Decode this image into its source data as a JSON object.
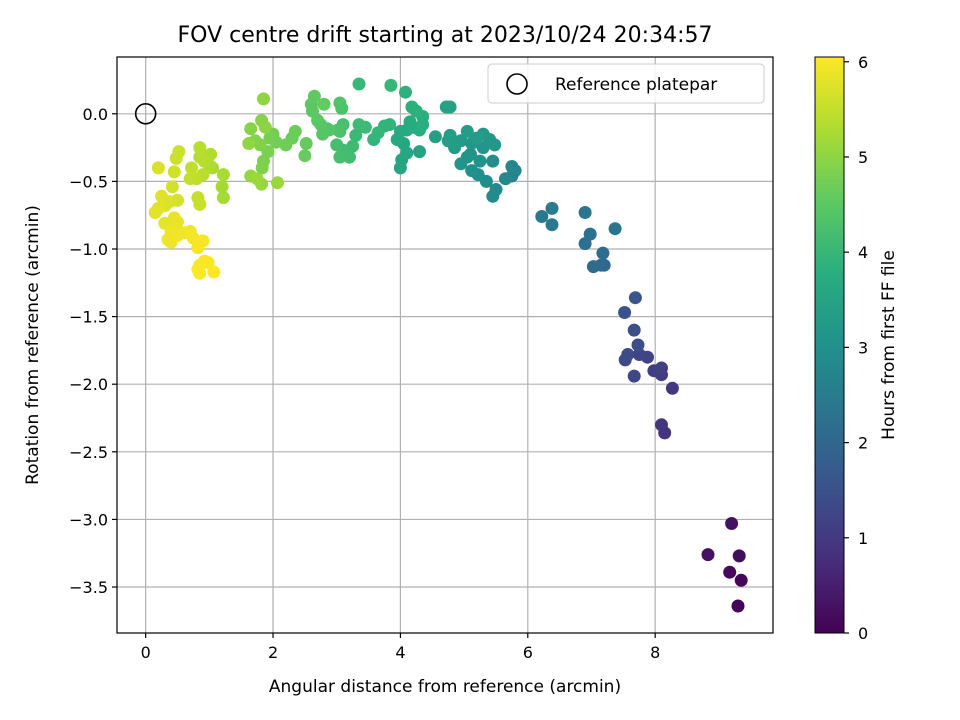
{
  "chart_data": {
    "type": "scatter",
    "title": "FOV centre drift starting at 2023/10/24 20:34:57",
    "xlabel": "Angular distance from reference (arcmin)",
    "ylabel": "Rotation from reference (arcmin)",
    "colorbar_label": "Hours from first FF file",
    "colormap": "viridis",
    "xlim": [
      -0.45,
      9.85
    ],
    "ylim": [
      -3.84,
      0.42
    ],
    "clim": [
      0,
      6.05
    ],
    "xticks": [
      0,
      2,
      4,
      6,
      8
    ],
    "yticks": [
      0.0,
      -0.5,
      -1.0,
      -1.5,
      -2.0,
      -2.5,
      -3.0,
      -3.5
    ],
    "xtick_labels": [
      "0",
      "2",
      "4",
      "6",
      "8"
    ],
    "ytick_labels": [
      "0.0",
      "−0.5",
      "−1.0",
      "−1.5",
      "−2.0",
      "−2.5",
      "−3.0",
      "−3.5"
    ],
    "cticks": [
      0,
      1,
      2,
      3,
      4,
      5,
      6
    ],
    "ctick_labels": [
      "0",
      "1",
      "2",
      "3",
      "4",
      "5",
      "6"
    ],
    "grid": true,
    "legend": {
      "placement": "upper right",
      "label": "Reference platepar"
    },
    "reference_point": {
      "x": 0,
      "y": 0
    },
    "points": [
      [
        9.3,
        -3.64,
        0.05
      ],
      [
        9.35,
        -3.45,
        0.1
      ],
      [
        9.17,
        -3.39,
        0.15
      ],
      [
        9.32,
        -3.27,
        0.2
      ],
      [
        8.83,
        -3.26,
        0.25
      ],
      [
        9.2,
        -3.03,
        0.3
      ],
      [
        8.15,
        -2.36,
        0.9
      ],
      [
        8.1,
        -2.3,
        0.95
      ],
      [
        8.27,
        -2.03,
        1.0
      ],
      [
        8.1,
        -1.93,
        1.05
      ],
      [
        7.98,
        -1.9,
        1.1
      ],
      [
        8.1,
        -1.88,
        1.15
      ],
      [
        7.88,
        -1.8,
        1.2
      ],
      [
        7.75,
        -1.78,
        1.25
      ],
      [
        7.67,
        -1.94,
        1.3
      ],
      [
        7.53,
        -1.82,
        1.35
      ],
      [
        7.57,
        -1.78,
        1.4
      ],
      [
        7.73,
        -1.71,
        1.45
      ],
      [
        7.67,
        -1.6,
        1.5
      ],
      [
        7.52,
        -1.47,
        1.55
      ],
      [
        7.69,
        -1.36,
        1.6
      ],
      [
        7.15,
        -1.12,
        2.0
      ],
      [
        7.2,
        -1.12,
        2.05
      ],
      [
        7.03,
        -1.13,
        2.1
      ],
      [
        7.18,
        -1.03,
        2.15
      ],
      [
        6.9,
        -0.96,
        2.2
      ],
      [
        6.98,
        -0.89,
        2.25
      ],
      [
        7.37,
        -0.85,
        2.3
      ],
      [
        6.9,
        -0.73,
        2.35
      ],
      [
        6.38,
        -0.82,
        2.4
      ],
      [
        6.22,
        -0.76,
        2.45
      ],
      [
        6.38,
        -0.7,
        2.5
      ],
      [
        5.75,
        -0.46,
        2.7
      ],
      [
        5.8,
        -0.42,
        2.72
      ],
      [
        5.75,
        -0.39,
        2.75
      ],
      [
        5.65,
        -0.48,
        2.8
      ],
      [
        5.45,
        -0.61,
        2.85
      ],
      [
        5.5,
        -0.56,
        2.87
      ],
      [
        5.35,
        -0.5,
        2.9
      ],
      [
        5.45,
        -0.35,
        2.95
      ],
      [
        5.22,
        -0.45,
        3.0
      ],
      [
        5.12,
        -0.42,
        3.02
      ],
      [
        5.25,
        -0.35,
        3.05
      ],
      [
        5.1,
        -0.3,
        3.07
      ],
      [
        4.95,
        -0.37,
        3.1
      ],
      [
        5.05,
        -0.32,
        3.12
      ],
      [
        5.3,
        -0.25,
        3.15
      ],
      [
        5.12,
        -0.22,
        3.17
      ],
      [
        5.48,
        -0.23,
        3.2
      ],
      [
        5.4,
        -0.19,
        3.22
      ],
      [
        5.3,
        -0.15,
        3.25
      ],
      [
        4.95,
        -0.2,
        3.27
      ],
      [
        5.2,
        -0.18,
        3.3
      ],
      [
        5.05,
        -0.13,
        3.32
      ],
      [
        4.85,
        -0.25,
        3.35
      ],
      [
        4.75,
        -0.2,
        3.37
      ],
      [
        4.78,
        -0.16,
        3.4
      ],
      [
        4.55,
        -0.17,
        3.42
      ],
      [
        4.72,
        0.05,
        3.45
      ],
      [
        4.78,
        0.05,
        3.47
      ],
      [
        4.3,
        -0.28,
        3.5
      ],
      [
        4.0,
        -0.4,
        3.52
      ],
      [
        4.02,
        -0.34,
        3.55
      ],
      [
        4.1,
        -0.29,
        3.57
      ],
      [
        4.05,
        -0.22,
        3.6
      ],
      [
        3.95,
        -0.19,
        3.62
      ],
      [
        4.1,
        -0.12,
        3.65
      ],
      [
        4.0,
        -0.13,
        3.67
      ],
      [
        4.15,
        -0.06,
        3.7
      ],
      [
        4.2,
        -0.1,
        3.72
      ],
      [
        4.3,
        -0.12,
        3.75
      ],
      [
        4.35,
        -0.08,
        3.77
      ],
      [
        4.35,
        -0.02,
        3.8
      ],
      [
        4.18,
        0.05,
        3.82
      ],
      [
        4.25,
        0.02,
        3.85
      ],
      [
        4.08,
        0.16,
        3.87
      ],
      [
        3.75,
        -0.09,
        3.9
      ],
      [
        3.83,
        -0.08,
        3.92
      ],
      [
        3.58,
        -0.19,
        3.95
      ],
      [
        3.65,
        -0.14,
        3.97
      ],
      [
        3.85,
        0.21,
        4.0
      ],
      [
        3.35,
        0.22,
        4.02
      ],
      [
        3.3,
        -0.16,
        4.05
      ],
      [
        3.45,
        -0.1,
        4.07
      ],
      [
        3.35,
        -0.08,
        4.1
      ],
      [
        3.25,
        -0.24,
        4.12
      ],
      [
        3.1,
        -0.27,
        4.15
      ],
      [
        3.2,
        -0.32,
        4.17
      ],
      [
        3.0,
        -0.23,
        4.2
      ],
      [
        3.05,
        -0.32,
        4.22
      ],
      [
        3.05,
        -0.13,
        4.25
      ],
      [
        3.1,
        -0.08,
        4.27
      ],
      [
        3.02,
        -0.12,
        4.3
      ],
      [
        3.08,
        0.04,
        4.32
      ],
      [
        3.05,
        0.08,
        4.35
      ],
      [
        2.85,
        -0.11,
        4.37
      ],
      [
        2.88,
        -0.12,
        4.4
      ],
      [
        2.78,
        -0.15,
        4.42
      ],
      [
        2.75,
        -0.08,
        4.45
      ],
      [
        2.7,
        -0.05,
        4.47
      ],
      [
        2.62,
        0.02,
        4.5
      ],
      [
        2.6,
        0.07,
        4.52
      ],
      [
        2.65,
        0.13,
        4.55
      ],
      [
        2.8,
        0.07,
        4.57
      ],
      [
        2.52,
        -0.22,
        4.6
      ],
      [
        2.5,
        -0.31,
        4.62
      ],
      [
        2.3,
        -0.18,
        4.65
      ],
      [
        2.35,
        -0.13,
        4.67
      ],
      [
        2.2,
        -0.23,
        4.7
      ],
      [
        2.05,
        -0.21,
        4.72
      ],
      [
        2.0,
        -0.15,
        4.75
      ],
      [
        1.95,
        -0.18,
        4.77
      ],
      [
        1.92,
        -0.28,
        4.8
      ],
      [
        1.85,
        -0.35,
        4.82
      ],
      [
        1.83,
        -0.4,
        4.85
      ],
      [
        1.8,
        -0.23,
        4.87
      ],
      [
        1.72,
        -0.2,
        4.9
      ],
      [
        1.65,
        -0.11,
        4.92
      ],
      [
        1.82,
        -0.05,
        4.95
      ],
      [
        1.88,
        -0.1,
        4.97
      ],
      [
        1.85,
        0.11,
        5.0
      ],
      [
        1.62,
        -0.22,
        5.02
      ],
      [
        1.65,
        -0.46,
        5.05
      ],
      [
        1.82,
        -0.52,
        5.07
      ],
      [
        2.07,
        -0.51,
        5.1
      ],
      [
        1.75,
        -0.48,
        5.12
      ],
      [
        1.22,
        -0.62,
        5.2
      ],
      [
        1.2,
        -0.54,
        5.22
      ],
      [
        1.22,
        -0.45,
        5.25
      ],
      [
        1.05,
        -0.4,
        5.27
      ],
      [
        1.0,
        -0.38,
        5.3
      ],
      [
        1.02,
        -0.3,
        5.32
      ],
      [
        0.92,
        -0.35,
        5.35
      ],
      [
        0.85,
        -0.32,
        5.37
      ],
      [
        0.85,
        -0.25,
        5.4
      ],
      [
        0.9,
        -0.45,
        5.42
      ],
      [
        0.8,
        -0.48,
        5.45
      ],
      [
        0.72,
        -0.4,
        5.47
      ],
      [
        0.7,
        -0.48,
        5.5
      ],
      [
        0.82,
        -0.62,
        5.52
      ],
      [
        0.85,
        -0.67,
        5.55
      ],
      [
        0.52,
        -0.28,
        5.57
      ],
      [
        0.48,
        -0.33,
        5.6
      ],
      [
        0.45,
        -0.43,
        5.62
      ],
      [
        0.42,
        -0.54,
        5.65
      ],
      [
        0.5,
        -0.64,
        5.67
      ],
      [
        0.2,
        -0.4,
        5.7
      ],
      [
        0.38,
        -0.65,
        5.72
      ],
      [
        0.3,
        -0.68,
        5.74
      ],
      [
        0.25,
        -0.61,
        5.76
      ],
      [
        0.2,
        -0.7,
        5.78
      ],
      [
        0.15,
        -0.73,
        5.8
      ],
      [
        0.3,
        -0.81,
        5.82
      ],
      [
        0.45,
        -0.77,
        5.84
      ],
      [
        0.5,
        -0.8,
        5.86
      ],
      [
        0.45,
        -0.85,
        5.88
      ],
      [
        0.4,
        -0.87,
        5.9
      ],
      [
        0.35,
        -0.93,
        5.91
      ],
      [
        0.4,
        -0.95,
        5.92
      ],
      [
        0.5,
        -0.9,
        5.93
      ],
      [
        0.6,
        -0.88,
        5.94
      ],
      [
        0.7,
        -0.87,
        5.95
      ],
      [
        0.75,
        -0.92,
        5.96
      ],
      [
        0.85,
        -0.95,
        5.97
      ],
      [
        0.82,
        -0.99,
        5.98
      ],
      [
        0.9,
        -0.94,
        5.99
      ],
      [
        0.92,
        -1.09,
        6.0
      ],
      [
        0.85,
        -1.12,
        6.01
      ],
      [
        0.82,
        -1.15,
        6.02
      ],
      [
        0.85,
        -1.18,
        6.03
      ],
      [
        0.98,
        -1.1,
        6.04
      ],
      [
        1.07,
        -1.17,
        6.05
      ]
    ]
  }
}
